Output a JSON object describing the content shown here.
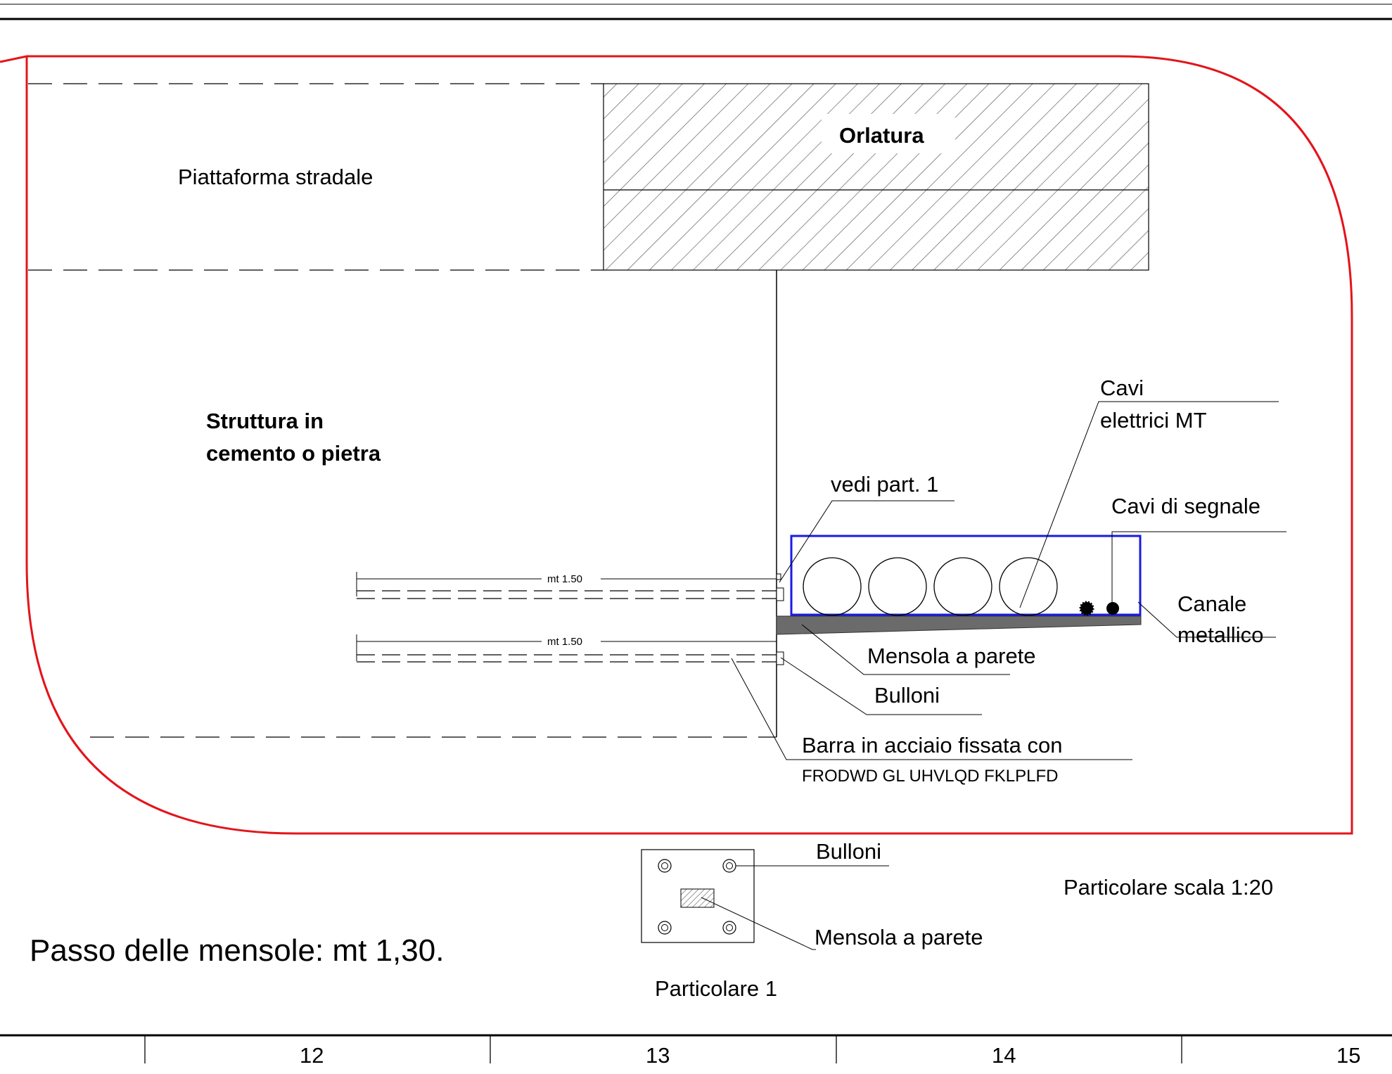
{
  "labels": {
    "orlatura": "Orlatura",
    "piattaforma": "Piattaforma stradale",
    "struttura_line1": "Struttura in",
    "struttura_line2": "cemento o pietra",
    "cavi_mt_line1": "Cavi",
    "cavi_mt_line2": "elettrici MT",
    "vedi_part": "vedi part. 1",
    "cavi_segnale": "Cavi di segnale",
    "canale_line1": "Canale",
    "canale_line2": "metallico",
    "mensola": "Mensola a parete",
    "bulloni": "Bulloni",
    "barra_line1": "Barra in acciaio fissata con",
    "barra_line2": "FRODWD GL UHVLQD FKLPLFD",
    "dim_upper": "mt 1.50",
    "dim_lower": "mt 1.50"
  },
  "detail": {
    "bulloni": "Bulloni",
    "mensola": "Mensola a parete",
    "title": "Particolare  1"
  },
  "notes": {
    "scala": "Particolare scala 1:20",
    "passo": "Passo delle mensole: mt 1,30."
  },
  "ruler": [
    "12",
    "13",
    "14",
    "15"
  ],
  "colors": {
    "boundary": "#e3141b",
    "channel": "#1a1ae6",
    "bracket": "#6b6b6b"
  }
}
